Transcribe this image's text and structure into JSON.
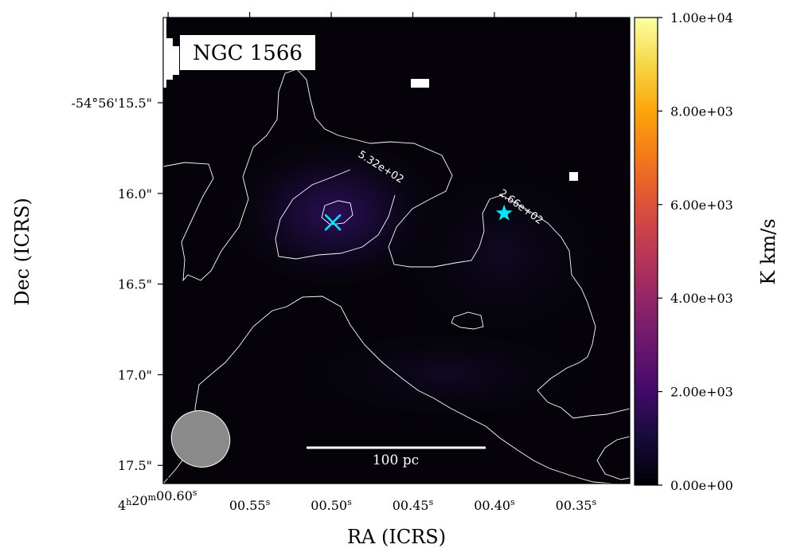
{
  "chart_data": {
    "type": "heatmap",
    "title": "NGC 1566",
    "xlabel": "RA (ICRS)",
    "ylabel": "Dec (ICRS)",
    "x_ticks": [
      {
        "label": "4h20m00.60s",
        "ra_s": 0.6
      },
      {
        "label": "00.55s",
        "ra_s": 0.55
      },
      {
        "label": "00.50s",
        "ra_s": 0.5
      },
      {
        "label": "00.45s",
        "ra_s": 0.45
      },
      {
        "label": "00.40s",
        "ra_s": 0.4
      },
      {
        "label": "00.35s",
        "ra_s": 0.35
      }
    ],
    "y_ticks": [
      {
        "label": "-54°56'15.5\"",
        "dec_arcsec": 15.5
      },
      {
        "label": "16.0\"",
        "dec_arcsec": 16.0
      },
      {
        "label": "16.5\"",
        "dec_arcsec": 16.5
      },
      {
        "label": "17.0\"",
        "dec_arcsec": 17.0
      },
      {
        "label": "17.5\"",
        "dec_arcsec": 17.5
      }
    ],
    "ra_range": [
      0.603,
      0.317
    ],
    "dec_range": [
      15.03,
      17.6
    ],
    "colorbar": {
      "label": "K km/s",
      "colormap": "inferno",
      "range": [
        0,
        10000
      ],
      "ticks": [
        {
          "value": 0,
          "label": "0.00e+00"
        },
        {
          "value": 2000,
          "label": "2.00e+03"
        },
        {
          "value": 4000,
          "label": "4.00e+03"
        },
        {
          "value": 6000,
          "label": "6.00e+03"
        },
        {
          "value": 8000,
          "label": "8.00e+03"
        },
        {
          "value": 10000,
          "label": "1.00e+04"
        }
      ]
    },
    "contours": [
      {
        "level": 266,
        "label": "2.66e+02"
      },
      {
        "level": 532,
        "label": "5.32e+02"
      }
    ],
    "markers": [
      {
        "type": "cross",
        "color": "#00e5ff",
        "ra_s": 0.499,
        "dec_arcsec": 16.16
      },
      {
        "type": "star",
        "color": "#00e5ff",
        "ra_s": 0.394,
        "dec_arcsec": 16.11
      }
    ],
    "scalebar_label": "100 pc",
    "beam": {
      "color": "#8a8a8a"
    }
  }
}
